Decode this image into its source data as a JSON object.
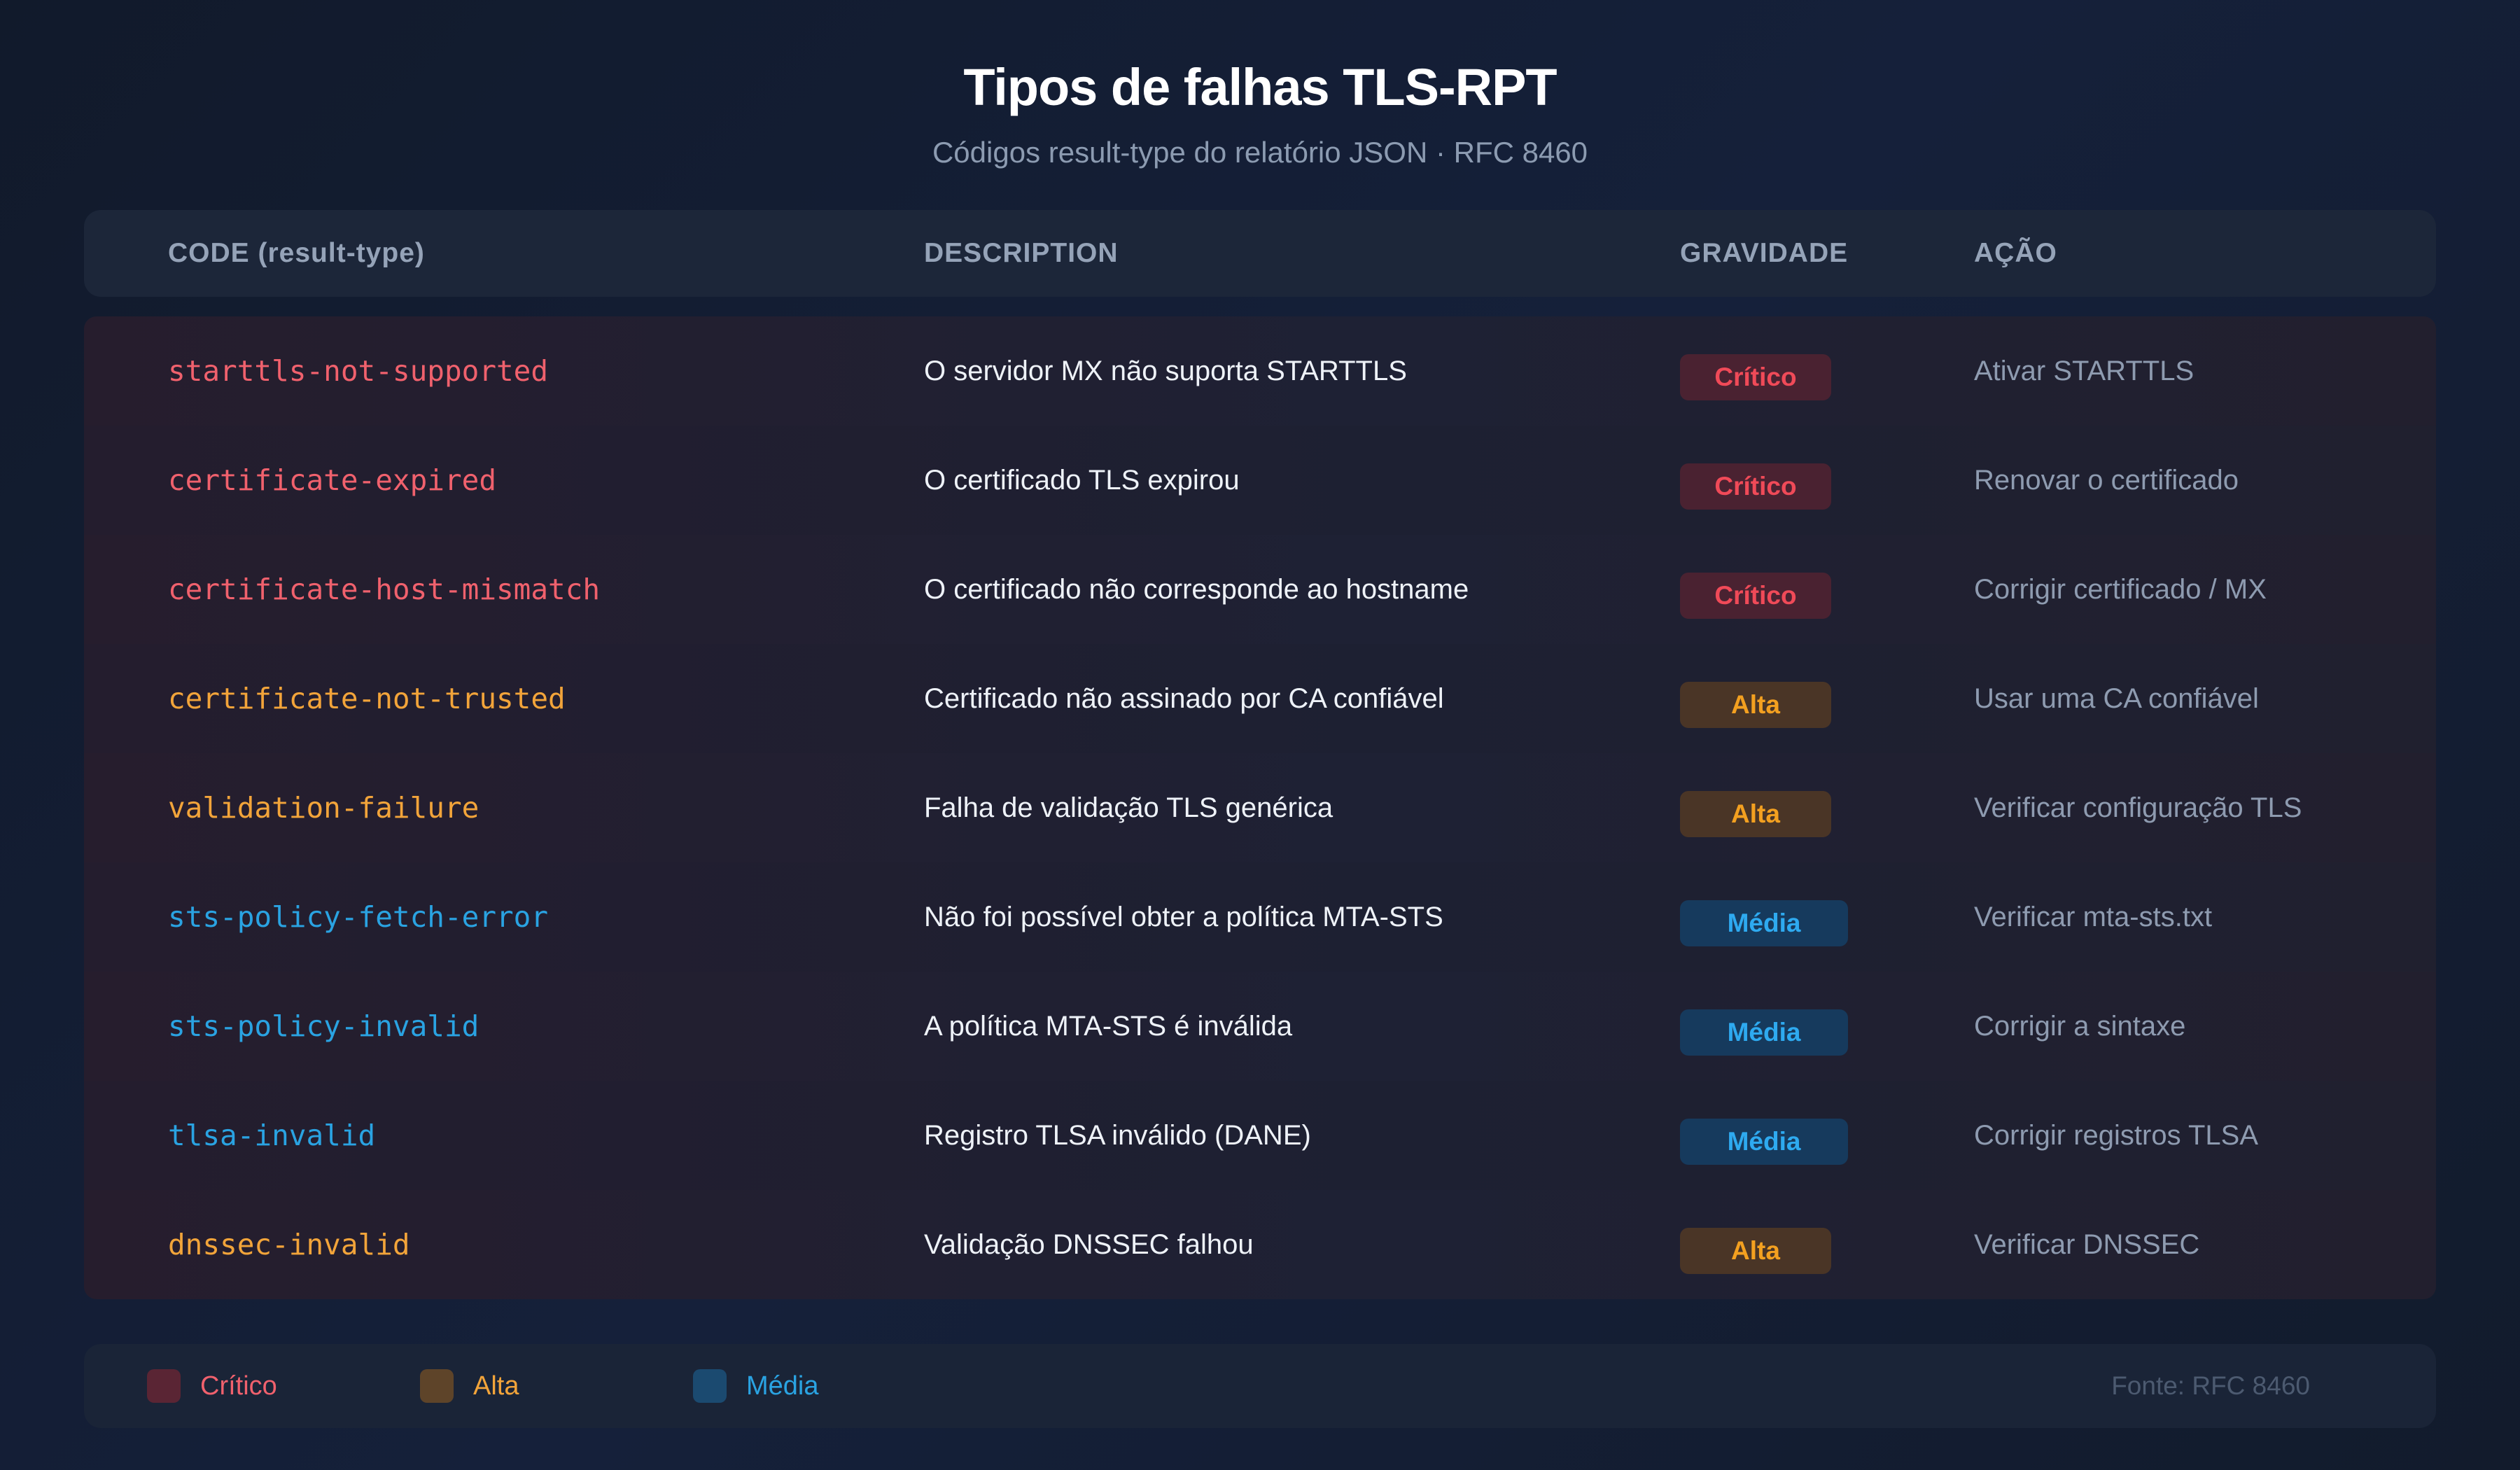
{
  "title": "Tipos de falhas TLS-RPT",
  "subtitle": "Códigos result-type do relatório JSON · RFC 8460",
  "table": {
    "headers": {
      "code": "CODE (result-type)",
      "description": "DESCRIPTION",
      "severity": "GRAVIDADE",
      "action": "AÇÃO"
    },
    "rows": [
      {
        "code": "starttls-not-supported",
        "description": "O servidor MX não suporta STARTTLS",
        "severity": "Crítico",
        "action": "Ativar STARTTLS"
      },
      {
        "code": "certificate-expired",
        "description": "O certificado TLS expirou",
        "severity": "Crítico",
        "action": "Renovar o certificado"
      },
      {
        "code": "certificate-host-mismatch",
        "description": "O certificado não corresponde ao hostname",
        "severity": "Crítico",
        "action": "Corrigir certificado / MX"
      },
      {
        "code": "certificate-not-trusted",
        "description": "Certificado não assinado por CA confiável",
        "severity": "Alta",
        "action": "Usar uma CA confiável"
      },
      {
        "code": "validation-failure",
        "description": "Falha de validação TLS genérica",
        "severity": "Alta",
        "action": "Verificar configuração TLS"
      },
      {
        "code": "sts-policy-fetch-error",
        "description": "Não foi possível obter a política MTA-STS",
        "severity": "Média",
        "action": "Verificar mta-sts.txt"
      },
      {
        "code": "sts-policy-invalid",
        "description": "A política MTA-STS é inválida",
        "severity": "Média",
        "action": "Corrigir a sintaxe"
      },
      {
        "code": "tlsa-invalid",
        "description": "Registro TLSA inválido (DANE)",
        "severity": "Média",
        "action": "Corrigir registros TLSA"
      },
      {
        "code": "dnssec-invalid",
        "description": "Validação DNSSEC falhou",
        "severity": "Alta",
        "action": "Verificar DNSSEC"
      }
    ]
  },
  "legend": {
    "items": [
      {
        "label": "Crítico",
        "color": "#f0616d"
      },
      {
        "label": "Alta",
        "color": "#f2a43a"
      },
      {
        "label": "Média",
        "color": "#2aa3e2"
      }
    ],
    "source": "Fonte: RFC 8460"
  }
}
